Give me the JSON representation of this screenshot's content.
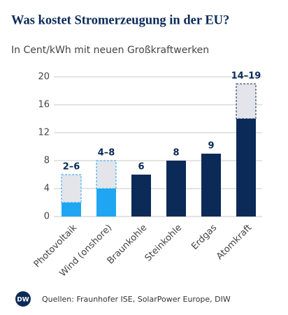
{
  "chart_data": {
    "type": "range_bar",
    "title": "Was kostet Stromerzeugung in der EU?",
    "subtitle": "In Cent/kWh mit neuen Großkraftwerken",
    "categories": [
      "Photovoltaik",
      "Wind (onshore)",
      "Braunkohle",
      "Steinkohle",
      "Erdgas",
      "Atomkraft"
    ],
    "values": [
      2,
      4,
      6,
      8,
      9,
      14
    ],
    "range_high": [
      6,
      8,
      null,
      null,
      null,
      19
    ],
    "value_labels": [
      "2–6",
      "4–8",
      "6",
      "8",
      "9",
      "14–19"
    ],
    "colors": [
      "#1ea6f2",
      "#1ea6f2",
      "#0b2a58",
      "#0b2a58",
      "#0b2a58",
      "#0b2a58"
    ],
    "ylim": [
      0,
      20
    ],
    "yticks": [
      0,
      4,
      8,
      12,
      16,
      20
    ],
    "grid": true,
    "source": "Quellen: Fraunhofer ISE, SolarPower Europe, DIW",
    "logo": "DW"
  }
}
